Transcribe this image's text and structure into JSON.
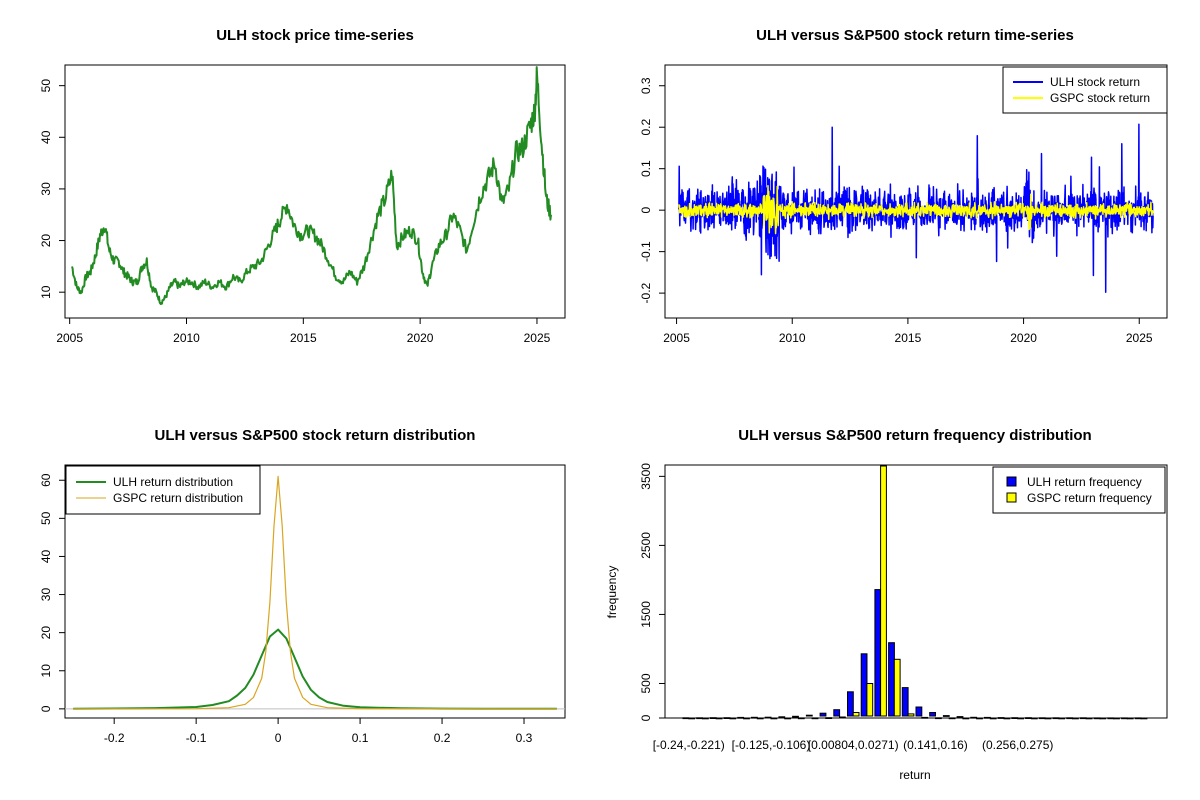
{
  "chart_data": [
    {
      "id": "price",
      "type": "line",
      "title": "ULH stock price time-series",
      "xlabel": "",
      "ylabel": "",
      "xlim": [
        2004.8,
        2026.2
      ],
      "ylim": [
        5,
        54
      ],
      "xticks": [
        2005,
        2010,
        2015,
        2020,
        2025
      ],
      "yticks": [
        10,
        20,
        30,
        40,
        50
      ],
      "series": [
        {
          "name": "ULH",
          "color": "#228b22",
          "x": [
            2005.1,
            2005.3,
            2005.5,
            2005.7,
            2005.9,
            2006.1,
            2006.3,
            2006.5,
            2006.7,
            2006.9,
            2007.1,
            2007.3,
            2007.5,
            2007.7,
            2007.9,
            2008.1,
            2008.3,
            2008.5,
            2008.7,
            2008.9,
            2009.1,
            2009.3,
            2009.5,
            2009.7,
            2009.9,
            2010.2,
            2010.5,
            2010.8,
            2011.1,
            2011.4,
            2011.7,
            2012.0,
            2012.3,
            2012.6,
            2012.9,
            2013.2,
            2013.5,
            2013.8,
            2014.0,
            2014.3,
            2014.6,
            2014.9,
            2015.2,
            2015.5,
            2015.8,
            2016.1,
            2016.4,
            2016.7,
            2017.0,
            2017.3,
            2017.6,
            2017.9,
            2018.2,
            2018.5,
            2018.8,
            2019.0,
            2019.3,
            2019.6,
            2019.9,
            2020.1,
            2020.3,
            2020.5,
            2020.8,
            2021.1,
            2021.4,
            2021.7,
            2022.0,
            2022.3,
            2022.6,
            2022.9,
            2023.2,
            2023.5,
            2023.8,
            2024.1,
            2024.4,
            2024.7,
            2024.9,
            2025.0,
            2025.2,
            2025.4,
            2025.6
          ],
          "y": [
            15,
            11,
            10,
            13,
            14,
            17,
            21,
            23,
            18,
            16,
            16,
            14,
            13,
            12,
            12,
            15,
            16,
            11,
            10,
            8,
            9,
            11,
            12,
            11,
            12,
            12,
            11,
            12,
            11,
            12,
            11,
            13,
            12,
            14,
            15,
            16,
            19,
            22,
            24,
            27,
            23,
            21,
            22,
            21,
            19,
            16,
            13,
            12,
            14,
            12,
            15,
            20,
            25,
            28,
            33,
            19,
            21,
            22,
            20,
            14,
            11,
            15,
            19,
            21,
            25,
            22,
            18,
            24,
            29,
            32,
            35,
            27,
            30,
            37,
            38,
            42,
            45,
            52,
            39,
            28,
            25
          ]
        }
      ]
    },
    {
      "id": "returns",
      "type": "line",
      "title": "ULH versus S&P500 stock return time-series",
      "xlabel": "",
      "ylabel": "",
      "xlim": [
        2004.5,
        2026.2
      ],
      "ylim": [
        -0.26,
        0.35
      ],
      "xticks": [
        2005,
        2010,
        2015,
        2020,
        2025
      ],
      "yticks": [
        -0.2,
        -0.1,
        0.0,
        0.1,
        0.2,
        0.3
      ],
      "legend_position": "top-right",
      "series": [
        {
          "name": "ULH stock return",
          "color": "#0000ff"
        },
        {
          "name": "GSPC stock return",
          "color": "#ffff00"
        }
      ]
    },
    {
      "id": "density",
      "type": "line",
      "title": "ULH versus S&P500 stock return distribution",
      "xlabel": "",
      "ylabel": "",
      "xlim": [
        -0.26,
        0.35
      ],
      "ylim": [
        -2.4,
        64
      ],
      "xticks": [
        -0.2,
        -0.1,
        0.0,
        0.1,
        0.2,
        0.3
      ],
      "yticks": [
        0,
        10,
        20,
        30,
        40,
        50,
        60
      ],
      "legend_position": "top-left",
      "series": [
        {
          "name": "ULH return distribution",
          "color": "#228b22",
          "x": [
            -0.25,
            -0.2,
            -0.15,
            -0.1,
            -0.08,
            -0.06,
            -0.05,
            -0.04,
            -0.03,
            -0.02,
            -0.01,
            0.0,
            0.01,
            0.02,
            0.03,
            0.04,
            0.05,
            0.06,
            0.08,
            0.1,
            0.15,
            0.2,
            0.25,
            0.3,
            0.34
          ],
          "y": [
            0.05,
            0.1,
            0.2,
            0.5,
            1.0,
            2.0,
            3.5,
            5.5,
            9.0,
            14.0,
            19.0,
            20.8,
            18.5,
            13.5,
            8.5,
            5.0,
            3.0,
            1.8,
            0.8,
            0.4,
            0.15,
            0.08,
            0.05,
            0.03,
            0.02
          ]
        },
        {
          "name": "GSPC return distribution",
          "color": "#daa520",
          "x": [
            -0.25,
            -0.1,
            -0.06,
            -0.04,
            -0.03,
            -0.02,
            -0.015,
            -0.01,
            -0.005,
            0.0,
            0.005,
            0.01,
            0.015,
            0.02,
            0.03,
            0.04,
            0.06,
            0.1,
            0.34
          ],
          "y": [
            0,
            0.05,
            0.3,
            1.2,
            3.0,
            8.0,
            15.0,
            28.0,
            48.0,
            61.0,
            48.0,
            28.0,
            15.0,
            8.0,
            3.0,
            1.2,
            0.3,
            0.05,
            0
          ]
        }
      ]
    },
    {
      "id": "frequency",
      "type": "bar",
      "title": "ULH versus S&P500 return frequency distribution",
      "xlabel": "return",
      "ylabel": "frequency",
      "ylim": [
        0,
        3650
      ],
      "yticks": [
        0,
        500,
        1500,
        2500,
        3500
      ],
      "xtick_labels": [
        "[-0.24,-0.221)",
        "[-0.125,-0.106)",
        "[0.00804,0.0271)",
        "(0.141,0.16)",
        "(0.256,0.275)"
      ],
      "xtick_positions": [
        0,
        6,
        12,
        18,
        24
      ],
      "legend_position": "top-right",
      "series": [
        {
          "name": "ULH return frequency",
          "color": "#0000ff",
          "values": [
            3,
            3,
            5,
            5,
            8,
            10,
            12,
            18,
            25,
            40,
            70,
            120,
            380,
            930,
            1860,
            1090,
            440,
            160,
            80,
            35,
            20,
            10,
            8,
            6,
            5,
            4,
            3,
            3,
            3,
            3,
            2,
            2,
            2,
            2
          ]
        },
        {
          "name": "GSPC return frequency",
          "color": "#ffff00",
          "values": [
            0,
            0,
            0,
            0,
            0,
            0,
            0,
            0,
            1,
            2,
            5,
            15,
            80,
            500,
            3650,
            850,
            60,
            8,
            3,
            1,
            0,
            0,
            0,
            0,
            0,
            0,
            0,
            0,
            0,
            0,
            0,
            0,
            0,
            0
          ]
        }
      ]
    }
  ]
}
